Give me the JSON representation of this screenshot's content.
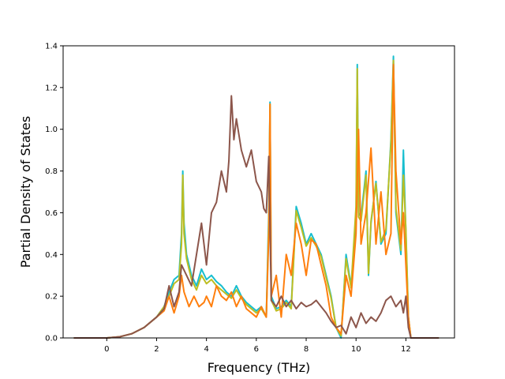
{
  "chart_data": {
    "type": "line",
    "title": "",
    "xlabel": "Frequency (THz)",
    "ylabel": "Partial Density of States",
    "xlim": [
      -1.75,
      13.95
    ],
    "ylim": [
      0,
      1.4
    ],
    "xticks": [
      0,
      2,
      4,
      6,
      8,
      10,
      12
    ],
    "xtick_labels": [
      "0",
      "2",
      "4",
      "6",
      "8",
      "10",
      "12"
    ],
    "yticks": [
      0.0,
      0.2,
      0.4,
      0.6,
      0.8,
      1.0,
      1.2,
      1.4
    ],
    "ytick_labels": [
      "0.0",
      "0.2",
      "0.4",
      "0.6",
      "0.8",
      "1.0",
      "1.2",
      "1.4"
    ],
    "grid": false,
    "legend": "none",
    "series": [
      {
        "color": "#17becf",
        "x": [
          -1.3,
          0,
          0.5,
          1.0,
          1.5,
          2.0,
          2.3,
          2.5,
          2.7,
          2.9,
          3.0,
          3.05,
          3.1,
          3.2,
          3.4,
          3.6,
          3.8,
          4.0,
          4.2,
          4.4,
          4.6,
          4.8,
          5.0,
          5.2,
          5.4,
          5.6,
          5.8,
          6.0,
          6.2,
          6.4,
          6.5,
          6.55,
          6.6,
          6.8,
          7.0,
          7.2,
          7.4,
          7.6,
          7.8,
          8.0,
          8.2,
          8.4,
          8.6,
          8.8,
          9.0,
          9.2,
          9.4,
          9.6,
          9.8,
          10.0,
          10.05,
          10.1,
          10.2,
          10.4,
          10.5,
          10.6,
          10.8,
          11.0,
          11.2,
          11.4,
          11.5,
          11.6,
          11.8,
          11.9,
          12.0,
          12.1,
          12.2,
          12.5,
          13.3
        ],
        "y": [
          0,
          0,
          0.005,
          0.02,
          0.05,
          0.1,
          0.15,
          0.22,
          0.28,
          0.3,
          0.5,
          0.8,
          0.55,
          0.4,
          0.3,
          0.25,
          0.33,
          0.28,
          0.3,
          0.27,
          0.25,
          0.22,
          0.2,
          0.25,
          0.2,
          0.17,
          0.15,
          0.13,
          0.15,
          0.1,
          0.6,
          1.13,
          0.2,
          0.14,
          0.15,
          0.18,
          0.15,
          0.63,
          0.55,
          0.45,
          0.5,
          0.45,
          0.4,
          0.3,
          0.2,
          0.05,
          0.0,
          0.4,
          0.25,
          0.55,
          1.31,
          0.6,
          0.58,
          0.8,
          0.3,
          0.55,
          0.75,
          0.45,
          0.5,
          0.95,
          1.35,
          0.6,
          0.4,
          0.9,
          0.5,
          0.1,
          0.0,
          0,
          0
        ]
      },
      {
        "color": "#bcbd22",
        "x": [
          -1.3,
          0,
          0.5,
          1.0,
          1.5,
          2.0,
          2.3,
          2.5,
          2.7,
          2.9,
          3.0,
          3.05,
          3.1,
          3.2,
          3.4,
          3.6,
          3.8,
          4.0,
          4.2,
          4.4,
          4.6,
          4.8,
          5.0,
          5.2,
          5.4,
          5.6,
          5.8,
          6.0,
          6.2,
          6.4,
          6.5,
          6.55,
          6.6,
          6.8,
          7.0,
          7.2,
          7.4,
          7.6,
          7.8,
          8.0,
          8.2,
          8.4,
          8.6,
          8.8,
          9.0,
          9.2,
          9.4,
          9.6,
          9.8,
          10.0,
          10.05,
          10.1,
          10.2,
          10.4,
          10.5,
          10.6,
          10.8,
          11.0,
          11.2,
          11.4,
          11.5,
          11.6,
          11.8,
          11.9,
          12.0,
          12.1,
          12.2,
          12.5,
          13.3
        ],
        "y": [
          0,
          0,
          0.005,
          0.02,
          0.05,
          0.1,
          0.15,
          0.2,
          0.26,
          0.28,
          0.45,
          0.78,
          0.5,
          0.38,
          0.28,
          0.23,
          0.3,
          0.26,
          0.28,
          0.25,
          0.23,
          0.21,
          0.19,
          0.23,
          0.19,
          0.16,
          0.14,
          0.12,
          0.14,
          0.1,
          0.55,
          1.12,
          0.18,
          0.13,
          0.14,
          0.17,
          0.14,
          0.61,
          0.53,
          0.44,
          0.48,
          0.44,
          0.39,
          0.29,
          0.19,
          0.05,
          0.01,
          0.38,
          0.24,
          0.63,
          1.29,
          0.58,
          0.56,
          0.78,
          0.31,
          0.56,
          0.74,
          0.46,
          0.52,
          0.93,
          1.33,
          0.62,
          0.42,
          0.78,
          0.52,
          0.1,
          0.0,
          0,
          0
        ]
      },
      {
        "color": "#ff7f0e",
        "x": [
          -1.3,
          0,
          0.5,
          1.0,
          1.5,
          2.0,
          2.3,
          2.5,
          2.7,
          2.9,
          3.0,
          3.1,
          3.3,
          3.5,
          3.7,
          3.9,
          4.0,
          4.2,
          4.4,
          4.6,
          4.8,
          5.0,
          5.2,
          5.4,
          5.6,
          5.8,
          6.0,
          6.2,
          6.4,
          6.5,
          6.55,
          6.6,
          6.8,
          7.0,
          7.2,
          7.4,
          7.6,
          7.8,
          8.0,
          8.2,
          8.4,
          8.6,
          8.8,
          9.0,
          9.2,
          9.4,
          9.6,
          9.8,
          10.0,
          10.1,
          10.2,
          10.4,
          10.6,
          10.8,
          11.0,
          11.2,
          11.4,
          11.5,
          11.6,
          11.8,
          11.9,
          12.0,
          12.1,
          12.2,
          12.5,
          13.3
        ],
        "y": [
          0,
          0,
          0.005,
          0.02,
          0.05,
          0.1,
          0.13,
          0.2,
          0.12,
          0.2,
          0.3,
          0.22,
          0.15,
          0.2,
          0.15,
          0.17,
          0.2,
          0.15,
          0.25,
          0.2,
          0.18,
          0.22,
          0.15,
          0.2,
          0.14,
          0.12,
          0.1,
          0.15,
          0.1,
          0.5,
          1.12,
          0.2,
          0.3,
          0.1,
          0.4,
          0.3,
          0.55,
          0.45,
          0.3,
          0.47,
          0.45,
          0.35,
          0.25,
          0.1,
          0.05,
          0.02,
          0.3,
          0.2,
          0.5,
          1.0,
          0.45,
          0.6,
          0.91,
          0.45,
          0.7,
          0.4,
          0.5,
          1.31,
          0.8,
          0.45,
          0.6,
          0.35,
          0.1,
          0.0,
          0,
          0
        ]
      },
      {
        "color": "#8c564b",
        "x": [
          -1.3,
          0,
          0.5,
          1.0,
          1.5,
          2.0,
          2.3,
          2.5,
          2.7,
          2.9,
          3.0,
          3.2,
          3.4,
          3.6,
          3.8,
          4.0,
          4.2,
          4.4,
          4.6,
          4.8,
          4.9,
          5.0,
          5.1,
          5.2,
          5.4,
          5.6,
          5.8,
          6.0,
          6.2,
          6.3,
          6.4,
          6.5,
          6.6,
          6.8,
          7.0,
          7.2,
          7.4,
          7.6,
          7.8,
          8.0,
          8.2,
          8.4,
          8.6,
          8.8,
          9.0,
          9.2,
          9.4,
          9.6,
          9.8,
          10.0,
          10.2,
          10.4,
          10.6,
          10.8,
          11.0,
          11.2,
          11.4,
          11.6,
          11.8,
          11.9,
          12.0,
          12.1,
          12.2,
          12.5,
          13.3
        ],
        "y": [
          0,
          0,
          0.005,
          0.02,
          0.05,
          0.1,
          0.14,
          0.25,
          0.15,
          0.22,
          0.35,
          0.3,
          0.25,
          0.4,
          0.55,
          0.35,
          0.6,
          0.65,
          0.8,
          0.7,
          0.85,
          1.16,
          0.95,
          1.05,
          0.9,
          0.82,
          0.9,
          0.75,
          0.7,
          0.62,
          0.6,
          0.87,
          0.18,
          0.15,
          0.2,
          0.15,
          0.18,
          0.14,
          0.17,
          0.15,
          0.16,
          0.18,
          0.15,
          0.12,
          0.08,
          0.05,
          0.06,
          0.02,
          0.1,
          0.05,
          0.12,
          0.07,
          0.1,
          0.08,
          0.12,
          0.18,
          0.2,
          0.15,
          0.18,
          0.12,
          0.2,
          0.05,
          0.0,
          0,
          0
        ]
      }
    ]
  }
}
